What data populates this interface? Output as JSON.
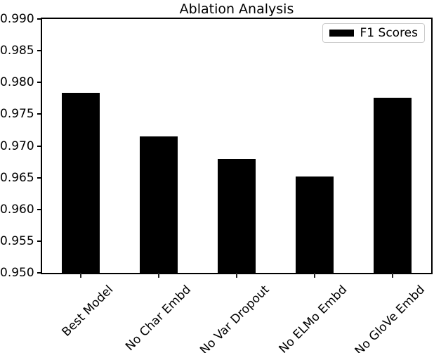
{
  "chart_data": {
    "type": "bar",
    "title": "Ablation Analysis",
    "categories": [
      "Best Model",
      "No Char Embd",
      "No Var Dropout",
      "No ELMo Embd",
      "No GloVe Embd"
    ],
    "series": [
      {
        "name": "F1 Scores",
        "color": "#000000",
        "values": [
          0.9784,
          0.9715,
          0.9679,
          0.9652,
          0.9776
        ]
      }
    ],
    "xlabel": "",
    "ylabel": "",
    "ylim": [
      0.95,
      0.99
    ],
    "yticks": [
      0.99,
      0.985,
      0.98,
      0.975,
      0.97,
      0.965,
      0.96,
      0.955,
      0.95
    ],
    "ytick_labels": [
      "0.990",
      "0.985",
      "0.980",
      "0.975",
      "0.970",
      "0.965",
      "0.960",
      "0.955",
      "0.950"
    ],
    "xtick_rotation_deg": 45,
    "grid": false,
    "legend": {
      "position": "upper right",
      "entries": [
        {
          "label": "F1 Scores",
          "color": "#000000"
        }
      ]
    },
    "colors": {
      "bar": "#000000",
      "axis": "#000000",
      "tick": "#222222",
      "text": "#000000",
      "legend_border": "#cccccc",
      "background": "#ffffff"
    }
  }
}
